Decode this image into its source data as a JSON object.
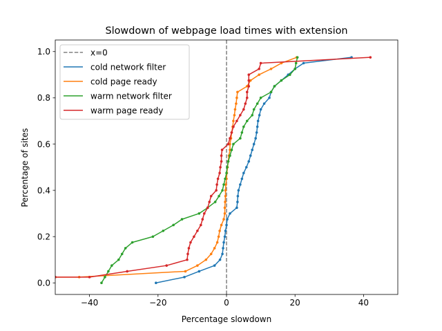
{
  "chart_data": {
    "type": "line",
    "title": "Slowdown of webpage load times with extension",
    "xlabel": "Percentage slowdown",
    "ylabel": "Percentage of sites",
    "xlim": [
      -50,
      50
    ],
    "ylim": [
      -0.05,
      1.05
    ],
    "xticks": [
      -40,
      -20,
      0,
      20,
      40
    ],
    "yticks": [
      0.0,
      0.2,
      0.4,
      0.6,
      0.8,
      1.0
    ],
    "xtick_labels": [
      "−40",
      "−20",
      "0",
      "20",
      "40"
    ],
    "ytick_labels": [
      "0.0",
      "0.2",
      "0.4",
      "0.6",
      "0.8",
      "1.0"
    ],
    "grid": false,
    "legend_position": "top-left",
    "vline": {
      "x": 0,
      "label": "x=0",
      "color": "#808080",
      "style": "dashed"
    },
    "series": [
      {
        "name": "cold network filter",
        "color": "#1f77b4",
        "points": [
          [
            -20.6,
            0.0
          ],
          [
            -12.3,
            0.025
          ],
          [
            -8.0,
            0.05
          ],
          [
            -3.5,
            0.075
          ],
          [
            -1.9,
            0.1
          ],
          [
            -1.2,
            0.125
          ],
          [
            -1.0,
            0.15
          ],
          [
            -0.8,
            0.175
          ],
          [
            -0.5,
            0.2
          ],
          [
            -0.3,
            0.225
          ],
          [
            0.0,
            0.25
          ],
          [
            0.2,
            0.275
          ],
          [
            1.0,
            0.3
          ],
          [
            3.0,
            0.325
          ],
          [
            3.2,
            0.35
          ],
          [
            3.3,
            0.375
          ],
          [
            3.5,
            0.4
          ],
          [
            4.0,
            0.425
          ],
          [
            4.5,
            0.45
          ],
          [
            5.0,
            0.475
          ],
          [
            5.8,
            0.5
          ],
          [
            6.5,
            0.525
          ],
          [
            7.0,
            0.55
          ],
          [
            7.5,
            0.575
          ],
          [
            8.0,
            0.6
          ],
          [
            8.5,
            0.625
          ],
          [
            8.8,
            0.65
          ],
          [
            9.0,
            0.675
          ],
          [
            9.2,
            0.7
          ],
          [
            9.6,
            0.725
          ],
          [
            10.0,
            0.75
          ],
          [
            11.0,
            0.775
          ],
          [
            12.5,
            0.8
          ],
          [
            13.0,
            0.825
          ],
          [
            14.0,
            0.85
          ],
          [
            16.0,
            0.875
          ],
          [
            18.0,
            0.9
          ],
          [
            20.0,
            0.925
          ],
          [
            22.5,
            0.95
          ],
          [
            36.5,
            0.975
          ]
        ]
      },
      {
        "name": "cold page ready",
        "color": "#ff7f0e",
        "points": [
          [
            -50.0,
            0.025
          ],
          [
            -43.0,
            0.025
          ],
          [
            -12.0,
            0.05
          ],
          [
            -8.5,
            0.075
          ],
          [
            -6.0,
            0.1
          ],
          [
            -4.5,
            0.125
          ],
          [
            -3.5,
            0.15
          ],
          [
            -2.7,
            0.175
          ],
          [
            -2.3,
            0.2
          ],
          [
            -2.0,
            0.225
          ],
          [
            -1.5,
            0.25
          ],
          [
            -0.8,
            0.275
          ],
          [
            -0.5,
            0.3
          ],
          [
            -0.5,
            0.325
          ],
          [
            -0.4,
            0.35
          ],
          [
            -0.3,
            0.375
          ],
          [
            -0.3,
            0.4
          ],
          [
            -0.2,
            0.425
          ],
          [
            0.0,
            0.45
          ],
          [
            0.1,
            0.475
          ],
          [
            0.3,
            0.5
          ],
          [
            0.5,
            0.525
          ],
          [
            0.7,
            0.55
          ],
          [
            1.0,
            0.575
          ],
          [
            1.0,
            0.6
          ],
          [
            1.3,
            0.625
          ],
          [
            1.5,
            0.65
          ],
          [
            1.8,
            0.675
          ],
          [
            2.0,
            0.7
          ],
          [
            2.3,
            0.725
          ],
          [
            2.5,
            0.75
          ],
          [
            2.8,
            0.775
          ],
          [
            3.0,
            0.8
          ],
          [
            3.2,
            0.825
          ],
          [
            6.0,
            0.85
          ],
          [
            7.0,
            0.875
          ],
          [
            9.5,
            0.9
          ],
          [
            13.0,
            0.925
          ],
          [
            16.0,
            0.95
          ],
          [
            20.5,
            0.975
          ]
        ]
      },
      {
        "name": "warm network filter",
        "color": "#2ca02c",
        "points": [
          [
            -36.5,
            0.0
          ],
          [
            -35.5,
            0.025
          ],
          [
            -34.5,
            0.05
          ],
          [
            -33.5,
            0.075
          ],
          [
            -31.5,
            0.1
          ],
          [
            -30.5,
            0.125
          ],
          [
            -29.5,
            0.15
          ],
          [
            -27.5,
            0.175
          ],
          [
            -21.5,
            0.2
          ],
          [
            -18.5,
            0.225
          ],
          [
            -15.5,
            0.25
          ],
          [
            -13.0,
            0.275
          ],
          [
            -8.0,
            0.3
          ],
          [
            -5.5,
            0.325
          ],
          [
            -3.3,
            0.35
          ],
          [
            -2.2,
            0.375
          ],
          [
            -1.2,
            0.4
          ],
          [
            -0.8,
            0.425
          ],
          [
            -0.4,
            0.45
          ],
          [
            0.0,
            0.475
          ],
          [
            0.2,
            0.5
          ],
          [
            0.5,
            0.525
          ],
          [
            1.0,
            0.55
          ],
          [
            1.5,
            0.575
          ],
          [
            2.0,
            0.6
          ],
          [
            4.0,
            0.625
          ],
          [
            4.5,
            0.65
          ],
          [
            5.0,
            0.675
          ],
          [
            6.0,
            0.7
          ],
          [
            7.5,
            0.725
          ],
          [
            8.0,
            0.75
          ],
          [
            9.0,
            0.775
          ],
          [
            10.0,
            0.8
          ],
          [
            13.0,
            0.825
          ],
          [
            14.0,
            0.85
          ],
          [
            16.0,
            0.875
          ],
          [
            18.5,
            0.9
          ],
          [
            20.0,
            0.925
          ],
          [
            20.3,
            0.95
          ],
          [
            20.7,
            0.975
          ]
        ]
      },
      {
        "name": "warm page ready",
        "color": "#d62728",
        "points": [
          [
            -50.0,
            0.025
          ],
          [
            -40.0,
            0.025
          ],
          [
            -29.0,
            0.05
          ],
          [
            -17.5,
            0.075
          ],
          [
            -11.5,
            0.1
          ],
          [
            -11.3,
            0.125
          ],
          [
            -11.0,
            0.15
          ],
          [
            -10.5,
            0.175
          ],
          [
            -9.5,
            0.2
          ],
          [
            -8.5,
            0.225
          ],
          [
            -7.5,
            0.25
          ],
          [
            -7.0,
            0.275
          ],
          [
            -6.5,
            0.3
          ],
          [
            -5.5,
            0.325
          ],
          [
            -5.0,
            0.35
          ],
          [
            -4.5,
            0.375
          ],
          [
            -3.0,
            0.4
          ],
          [
            -2.8,
            0.425
          ],
          [
            -2.5,
            0.45
          ],
          [
            -2.0,
            0.475
          ],
          [
            -1.8,
            0.5
          ],
          [
            -1.5,
            0.525
          ],
          [
            -1.5,
            0.55
          ],
          [
            -1.3,
            0.575
          ],
          [
            0.5,
            0.6
          ],
          [
            1.0,
            0.625
          ],
          [
            1.5,
            0.65
          ],
          [
            2.0,
            0.675
          ],
          [
            3.0,
            0.7
          ],
          [
            4.0,
            0.725
          ],
          [
            5.0,
            0.75
          ],
          [
            5.5,
            0.775
          ],
          [
            6.0,
            0.8
          ],
          [
            6.0,
            0.825
          ],
          [
            6.5,
            0.85
          ],
          [
            6.5,
            0.875
          ],
          [
            6.5,
            0.9
          ],
          [
            9.5,
            0.925
          ],
          [
            10.0,
            0.95
          ],
          [
            42.0,
            0.975
          ]
        ]
      }
    ]
  }
}
